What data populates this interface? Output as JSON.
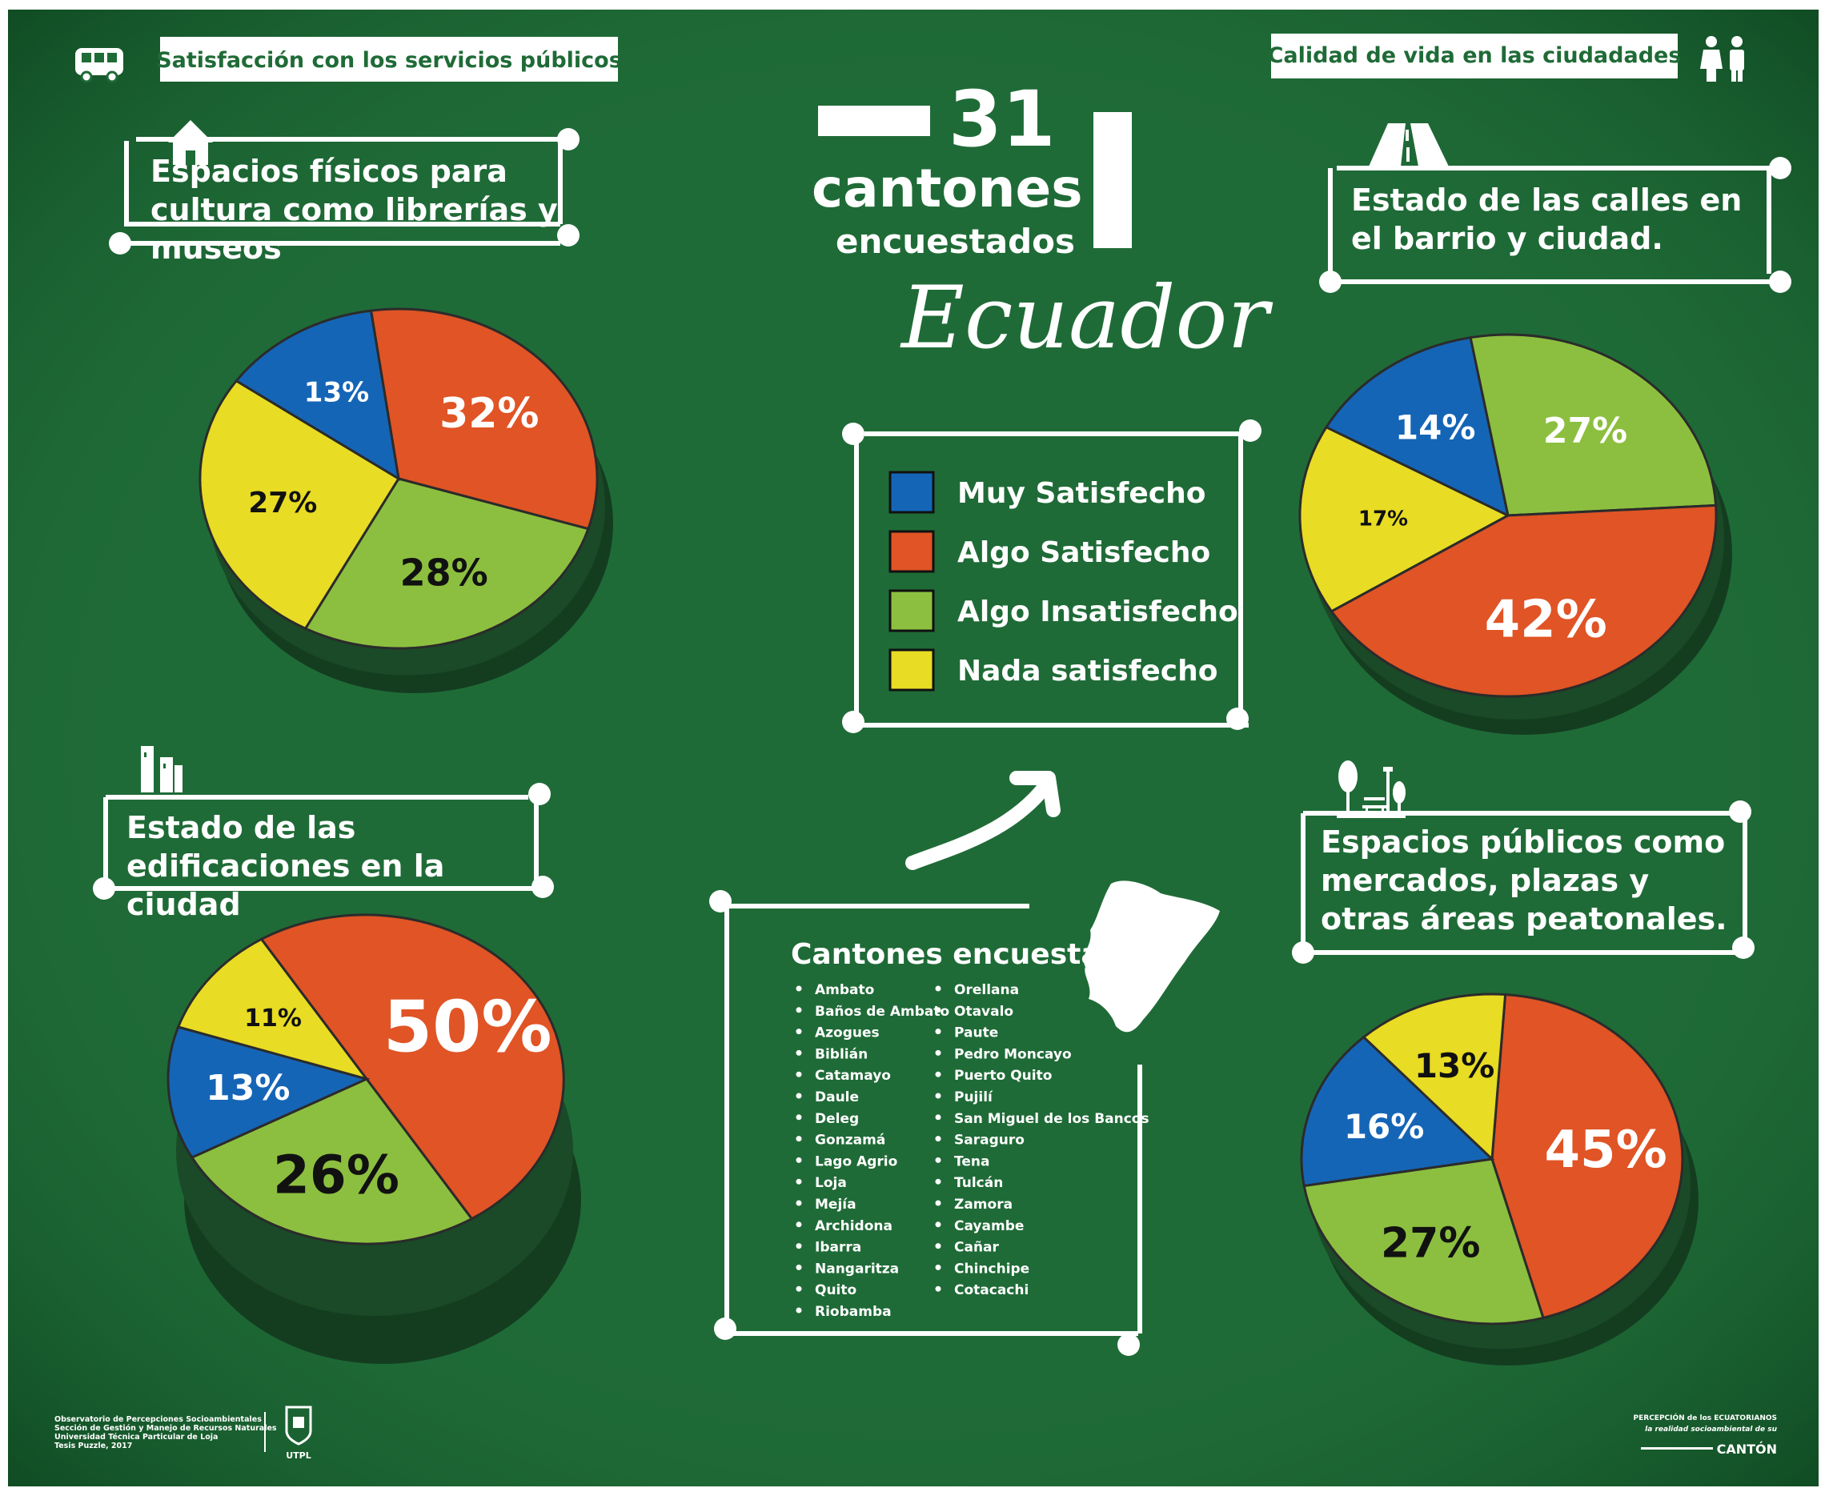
{
  "headers": {
    "left": "Satisfacción con los servicios públicos",
    "right": "Calidad de vida en las ciudadades"
  },
  "title": {
    "number": "31",
    "word": "cantones",
    "sub": "encuestados",
    "country": "Ecuador"
  },
  "sections": {
    "cultura": "Espacios físicos para cultura como librerías y museos",
    "edificaciones": "Estado de las edificaciones en la ciudad",
    "calles": "Estado de las calles en el barrio y ciudad.",
    "publicos": "Espacios públicos como mercados, plazas y otras áreas peatonales."
  },
  "legend": [
    {
      "label": "Muy Satisfecho",
      "color": "#1565b7"
    },
    {
      "label": "Algo Satisfecho",
      "color": "#e05425"
    },
    {
      "label": "Algo Insatisfecho",
      "color": "#8cbf3f"
    },
    {
      "label": "Nada satisfecho",
      "color": "#e8dc24"
    }
  ],
  "cantones": {
    "title": "Cantones encuestados",
    "col1": [
      "Ambato",
      "Baños de Ambato",
      "Azogues",
      "Biblián",
      "Catamayo",
      "Daule",
      "Deleg",
      "Gonzamá",
      "Lago Agrio",
      "Loja",
      "Mejía",
      "Archidona",
      "Ibarra",
      "Nangaritza",
      "Quito",
      "Riobamba"
    ],
    "col2": [
      "Orellana",
      "Otavalo",
      "Paute",
      "Pedro Moncayo",
      "Puerto Quito",
      "Pujilí",
      "San Miguel de los Bancos",
      "Saraguro",
      "Tena",
      "Tulcán",
      "Zamora",
      "Cayambe",
      "Cañar",
      "Chinchipe",
      "Cotacachi"
    ]
  },
  "footer": {
    "left": [
      "Observatorio de Percepciones Socioambientales",
      "Sección de Gestión y Manejo de Recursos Naturales",
      "Universidad Técnica Particular de Loja",
      "Tesis Puzzle, 2017"
    ],
    "utpl": "UTPL",
    "right_top": "PERCEPCIÓN de los ECUATORIANOS",
    "right_mid": "la realidad socioambiental de su",
    "right_bottom": "CANTÓN"
  },
  "icons": [
    "bus-icon",
    "house-icon",
    "buildings-icon",
    "couple-icon",
    "road-icon",
    "park-icon",
    "arrow-icon",
    "ecuador-map-icon"
  ],
  "chart_data": [
    {
      "type": "pie",
      "title": "Espacios físicos para cultura como librerías y museos",
      "categories": [
        "Muy Satisfecho",
        "Algo Satisfecho",
        "Algo Insatisfecho",
        "Nada satisfecho"
      ],
      "values": [
        13,
        32,
        28,
        27
      ],
      "labels": [
        "13%",
        "32%",
        "28%",
        "27%"
      ]
    },
    {
      "type": "pie",
      "title": "Estado de las edificaciones en la ciudad",
      "categories": [
        "Muy Satisfecho",
        "Algo Satisfecho",
        "Algo Insatisfecho",
        "Nada satisfecho"
      ],
      "values": [
        13,
        50,
        26,
        11
      ],
      "labels": [
        "13%",
        "50%",
        "26%",
        "11%"
      ]
    },
    {
      "type": "pie",
      "title": "Estado de las calles en el barrio y ciudad.",
      "categories": [
        "Muy Satisfecho",
        "Algo Satisfecho",
        "Algo Insatisfecho",
        "Nada satisfecho"
      ],
      "values": [
        14,
        42,
        27,
        17
      ],
      "labels": [
        "14%",
        "42%",
        "27%",
        "17%"
      ]
    },
    {
      "type": "pie",
      "title": "Espacios públicos como mercados, plazas y otras áreas peatonales.",
      "categories": [
        "Muy Satisfecho",
        "Algo Satisfecho",
        "Algo Insatisfecho",
        "Nada satisfecho"
      ],
      "values": [
        16,
        45,
        27,
        13
      ],
      "labels": [
        "16%",
        "45%",
        "27%",
        "13%"
      ]
    }
  ]
}
